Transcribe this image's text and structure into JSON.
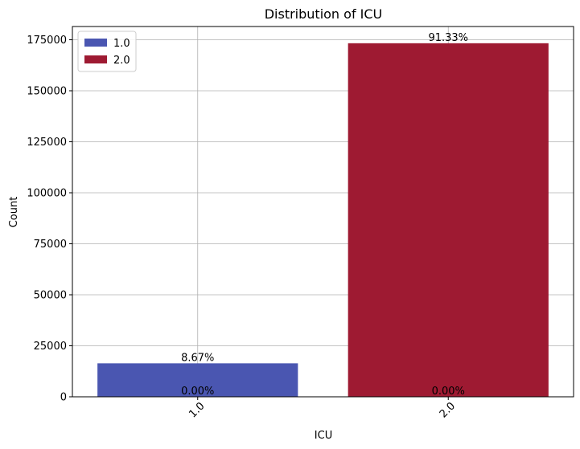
{
  "chart_data": {
    "type": "bar",
    "title": "Distribution of ICU",
    "xlabel": "ICU",
    "ylabel": "Count",
    "categories": [
      "1.0",
      "2.0"
    ],
    "series": [
      {
        "name": "1.0",
        "color": "#4a56b1",
        "values": [
          16400,
          0
        ]
      },
      {
        "name": "2.0",
        "color": "#9e1a32",
        "values": [
          0,
          173300
        ]
      }
    ],
    "data_labels": [
      {
        "category": "1.0",
        "series": "1.0",
        "text": "8.67%"
      },
      {
        "category": "1.0",
        "series": "2.0",
        "text": "0.00%"
      },
      {
        "category": "2.0",
        "series": "1.0",
        "text": "0.00%"
      },
      {
        "category": "2.0",
        "series": "2.0",
        "text": "91.33%"
      }
    ],
    "ylim": [
      0,
      181500
    ],
    "yticks": [
      0,
      25000,
      50000,
      75000,
      100000,
      125000,
      150000,
      175000
    ],
    "ytick_labels": [
      "0",
      "25000",
      "50000",
      "75000",
      "100000",
      "125000",
      "150000",
      "175000"
    ],
    "xtick_rotation_deg": 45,
    "grid": true,
    "legend_position": "top-left"
  }
}
